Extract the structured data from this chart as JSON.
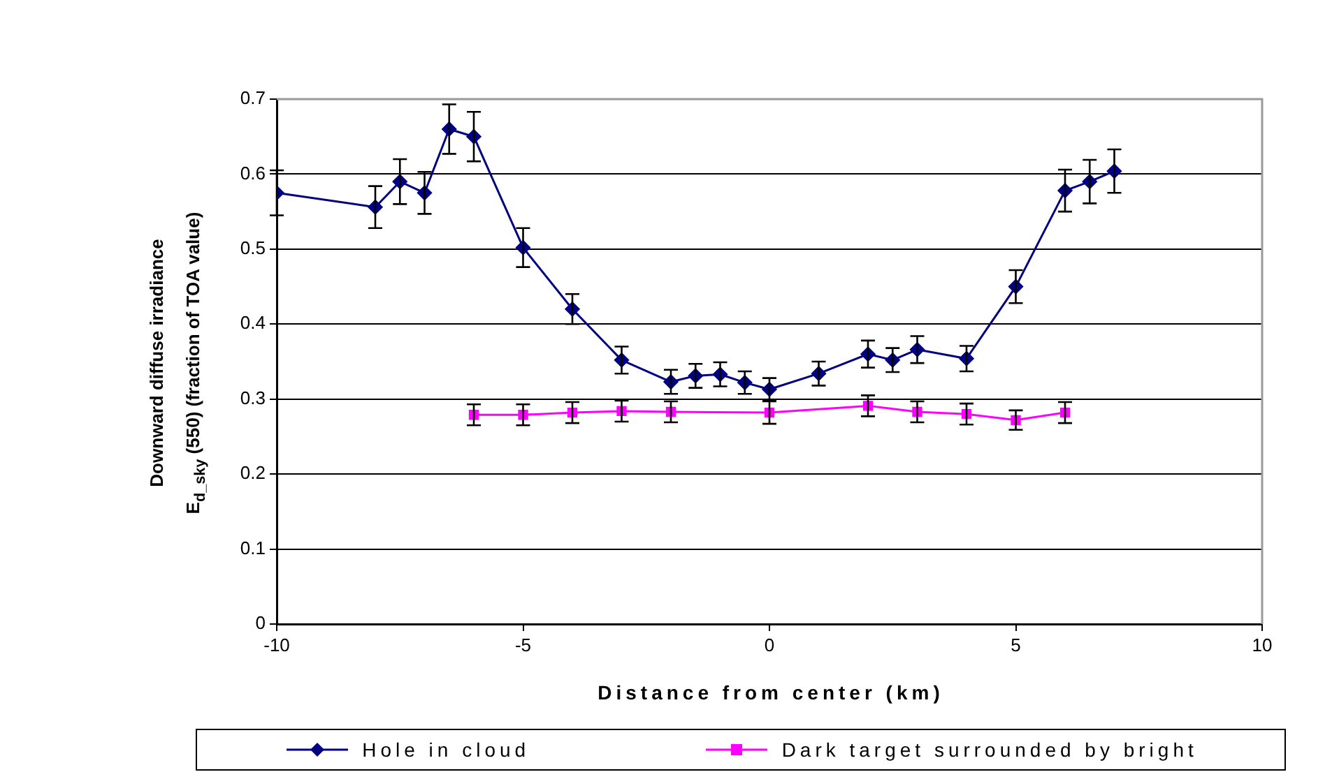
{
  "chart_data": {
    "type": "line",
    "xlabel": "Distance from center (km)",
    "ylabel": "Downward diffuse irradiance\nE$_{d_sky}$ (550) (fraction of TOA value)",
    "xlim": [
      -10,
      10
    ],
    "xticks": [
      -10,
      -5,
      0,
      5,
      10
    ],
    "ylim": [
      0,
      0.7
    ],
    "yticks": [
      0,
      0.1,
      0.2,
      0.3,
      0.4,
      0.5,
      0.6,
      0.7
    ],
    "grid": "y",
    "legend": "bottom",
    "line_style": "solid",
    "series": [
      {
        "name": "Hole in cloud",
        "color": "#000080",
        "marker": "diamond",
        "x": [
          -10,
          -8,
          -7.5,
          -7,
          -6.5,
          -6,
          -5,
          -4,
          -3,
          -2,
          -1.5,
          -1,
          -0.5,
          0,
          1,
          2,
          2.5,
          3,
          4,
          5,
          6,
          6.5,
          7
        ],
        "values": [
          0.575,
          0.556,
          0.59,
          0.575,
          0.66,
          0.65,
          0.502,
          0.42,
          0.352,
          0.323,
          0.331,
          0.333,
          0.322,
          0.313,
          0.334,
          0.36,
          0.352,
          0.366,
          0.354,
          0.45,
          0.578,
          0.59,
          0.604
        ],
        "errors": [
          0.03,
          0.028,
          0.03,
          0.028,
          0.033,
          0.033,
          0.026,
          0.02,
          0.018,
          0.016,
          0.016,
          0.016,
          0.015,
          0.015,
          0.016,
          0.018,
          0.016,
          0.018,
          0.017,
          0.022,
          0.028,
          0.029,
          0.029
        ]
      },
      {
        "name": "Dark target surrounded by bright",
        "color": "#ff00ff",
        "marker": "square",
        "x": [
          -6,
          -5,
          -4,
          -3,
          -2,
          0,
          2,
          3,
          4,
          5,
          6
        ],
        "values": [
          0.279,
          0.279,
          0.282,
          0.284,
          0.283,
          0.282,
          0.291,
          0.283,
          0.28,
          0.272,
          0.282
        ],
        "errors": [
          0.014,
          0.014,
          0.014,
          0.014,
          0.014,
          0.015,
          0.014,
          0.014,
          0.014,
          0.013,
          0.014
        ]
      }
    ]
  }
}
